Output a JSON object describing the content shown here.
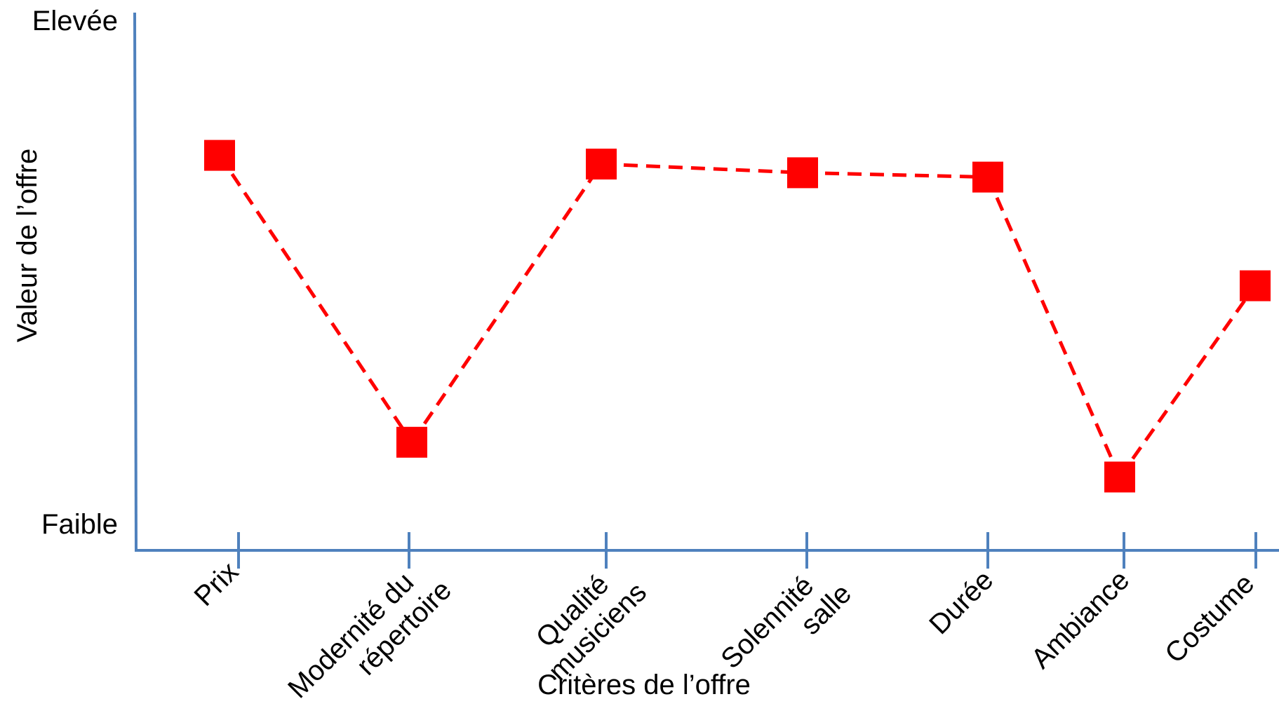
{
  "chart_data": {
    "type": "line",
    "title": "",
    "xlabel": "Critères de l’offre",
    "ylabel": "Valeur de l’offre",
    "ytick_top": "Elevée",
    "ytick_bottom": "Faible",
    "ylim": [
      0,
      10
    ],
    "grid": false,
    "legend": "none",
    "categories": [
      [
        "Prix"
      ],
      [
        "Modernité du",
        "répertoire"
      ],
      [
        "Qualité",
        "musiciens"
      ],
      [
        "Solennité",
        "salle"
      ],
      [
        "Durée"
      ],
      [
        "Ambiance"
      ],
      [
        "Costume"
      ]
    ],
    "series": [
      {
        "values": [
          8.2,
          1.6,
          8.0,
          7.8,
          7.7,
          0.8,
          5.2
        ]
      }
    ],
    "colors": {
      "axis": "#4f81bd",
      "series": "#ff0000"
    }
  }
}
